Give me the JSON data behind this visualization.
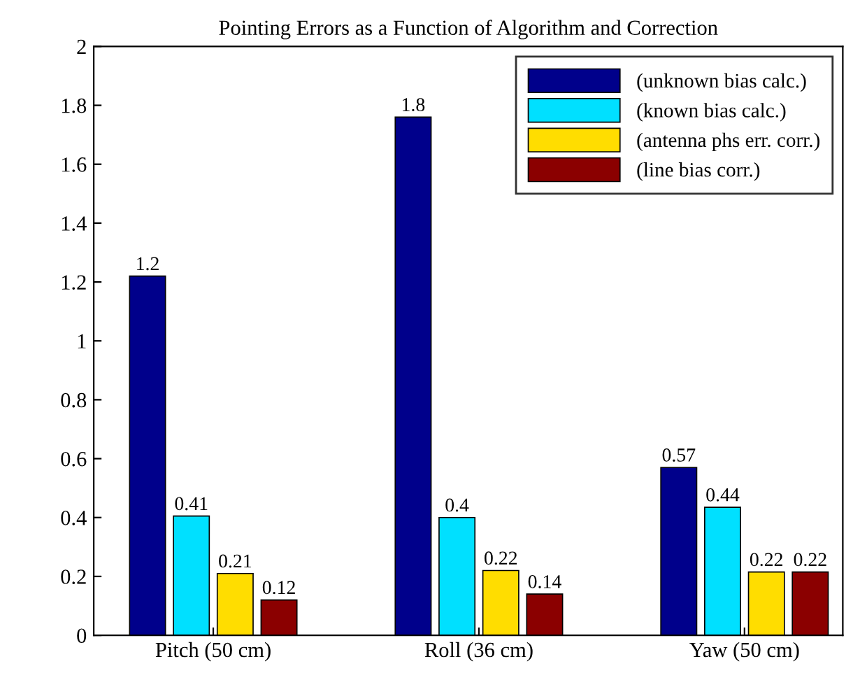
{
  "chart_data": {
    "type": "bar",
    "title": "Pointing Errors as a Function of Algorithm and Correction",
    "categories": [
      "Pitch (50 cm)",
      "Roll (36 cm)",
      "Yaw (50 cm)"
    ],
    "series": [
      {
        "name": "(unknown bias calc.)",
        "color": "#00008b",
        "values": [
          1.22,
          1.76,
          0.57
        ],
        "value_labels": [
          "1.2",
          "1.8",
          "0.57"
        ]
      },
      {
        "name": "(known bias calc.)",
        "color": "#00e0ff",
        "values": [
          0.405,
          0.4,
          0.435
        ],
        "value_labels": [
          "0.41",
          "0.4",
          "0.44"
        ]
      },
      {
        "name": "(antenna phs err. corr.)",
        "color": "#ffdd00",
        "values": [
          0.21,
          0.22,
          0.215
        ],
        "value_labels": [
          "0.21",
          "0.22",
          "0.22"
        ]
      },
      {
        "name": "(line bias corr.)",
        "color": "#8b0000",
        "values": [
          0.12,
          0.14,
          0.215
        ],
        "value_labels": [
          "0.12",
          "0.14",
          "0.22"
        ]
      }
    ],
    "ylim": [
      0,
      2
    ],
    "yticks": [
      0,
      0.2,
      0.4,
      0.6,
      0.8,
      1,
      1.2,
      1.4,
      1.6,
      1.8,
      2
    ],
    "grid": false,
    "legend": "top right"
  }
}
